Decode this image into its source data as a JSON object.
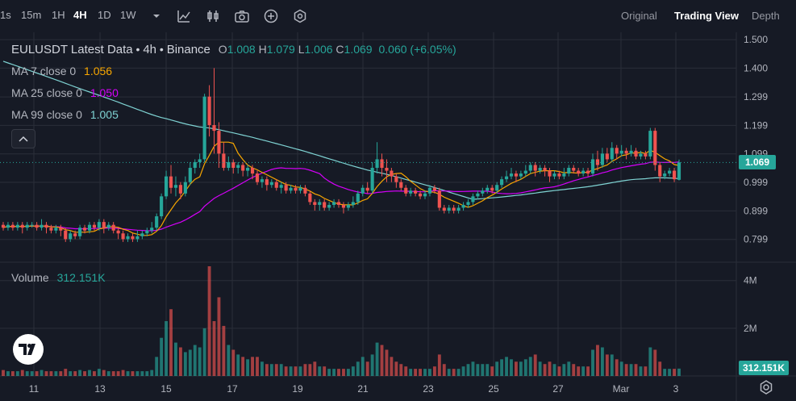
{
  "toolbar": {
    "intervals": [
      {
        "label": "1s",
        "active": false
      },
      {
        "label": "15m",
        "active": false
      },
      {
        "label": "1H",
        "active": false
      },
      {
        "label": "4H",
        "active": true
      },
      {
        "label": "1D",
        "active": false
      },
      {
        "label": "1W",
        "active": false
      }
    ],
    "icons": [
      "chevron-down-icon",
      "indicators-icon",
      "candle-style-icon",
      "camera-icon",
      "add-icon",
      "settings-hex-icon"
    ],
    "views": [
      {
        "label": "Original",
        "active": false
      },
      {
        "label": "Trading View",
        "active": true
      },
      {
        "label": "Depth",
        "active": false
      }
    ]
  },
  "legend": {
    "symbol": "EULUSDT Latest Data",
    "interval": "4h",
    "exchange": "Binance",
    "ohlc": {
      "o": "1.008",
      "h": "1.079",
      "l": "1.006",
      "c": "1.069",
      "chg": "0.060 (+6.05%)"
    },
    "ma7": {
      "label": "MA 7 close 0",
      "value": "1.056"
    },
    "ma25": {
      "label": "MA 25 close 0",
      "value": "1.050"
    },
    "ma99": {
      "label": "MA 99 close 0",
      "value": "1.005"
    },
    "volume": {
      "label": "Volume",
      "value": "312.151K"
    }
  },
  "price_tag": "1.069",
  "volume_tag": "312.151K",
  "colors": {
    "up": "#26a69a",
    "down": "#ef5350",
    "ma7": "#f7a600",
    "ma25": "#d500f9",
    "ma99": "#7fd3d3",
    "bg": "#161a25",
    "grid": "#2a2e39",
    "text": "#b2b5be"
  },
  "chart_data": {
    "type": "candlestick",
    "x_ticks": [
      "11",
      "13",
      "15",
      "17",
      "19",
      "21",
      "23",
      "25",
      "27",
      "Mar",
      "3"
    ],
    "price_axis": {
      "ticks": [
        "1.500",
        "1.400",
        "1.299",
        "1.199",
        "1.099",
        "0.999",
        "0.899",
        "0.799"
      ],
      "ylim": [
        0.75,
        1.52
      ]
    },
    "volume_axis": {
      "ticks": [
        "4M",
        "2M"
      ],
      "ylim": [
        0,
        4.6
      ]
    },
    "candles": [
      [
        0.85,
        0.84,
        0.83,
        0.86,
        0.25
      ],
      [
        0.84,
        0.85,
        0.83,
        0.86,
        0.2
      ],
      [
        0.85,
        0.84,
        0.83,
        0.86,
        0.2
      ],
      [
        0.84,
        0.85,
        0.83,
        0.86,
        0.2
      ],
      [
        0.85,
        0.84,
        0.82,
        0.86,
        0.25
      ],
      [
        0.84,
        0.85,
        0.83,
        0.86,
        0.2
      ],
      [
        0.85,
        0.85,
        0.84,
        0.86,
        0.2
      ],
      [
        0.85,
        0.84,
        0.83,
        0.86,
        0.2
      ],
      [
        0.84,
        0.85,
        0.83,
        0.87,
        0.25
      ],
      [
        0.85,
        0.84,
        0.82,
        0.86,
        0.2
      ],
      [
        0.84,
        0.83,
        0.82,
        0.85,
        0.2
      ],
      [
        0.83,
        0.84,
        0.82,
        0.85,
        0.2
      ],
      [
        0.84,
        0.83,
        0.81,
        0.85,
        0.2
      ],
      [
        0.83,
        0.8,
        0.79,
        0.84,
        0.3
      ],
      [
        0.8,
        0.82,
        0.79,
        0.83,
        0.2
      ],
      [
        0.82,
        0.81,
        0.8,
        0.83,
        0.2
      ],
      [
        0.81,
        0.84,
        0.8,
        0.85,
        0.25
      ],
      [
        0.84,
        0.83,
        0.82,
        0.85,
        0.2
      ],
      [
        0.83,
        0.85,
        0.82,
        0.86,
        0.25
      ],
      [
        0.85,
        0.84,
        0.83,
        0.86,
        0.2
      ],
      [
        0.84,
        0.86,
        0.83,
        0.87,
        0.3
      ],
      [
        0.86,
        0.84,
        0.82,
        0.87,
        0.25
      ],
      [
        0.84,
        0.85,
        0.83,
        0.86,
        0.2
      ],
      [
        0.85,
        0.83,
        0.82,
        0.86,
        0.2
      ],
      [
        0.83,
        0.82,
        0.8,
        0.84,
        0.2
      ],
      [
        0.82,
        0.8,
        0.79,
        0.83,
        0.25
      ],
      [
        0.8,
        0.81,
        0.79,
        0.82,
        0.2
      ],
      [
        0.81,
        0.8,
        0.79,
        0.82,
        0.2
      ],
      [
        0.8,
        0.81,
        0.79,
        0.83,
        0.2
      ],
      [
        0.81,
        0.82,
        0.8,
        0.83,
        0.2
      ],
      [
        0.82,
        0.83,
        0.81,
        0.84,
        0.2
      ],
      [
        0.83,
        0.84,
        0.82,
        0.86,
        0.25
      ],
      [
        0.84,
        0.88,
        0.83,
        0.89,
        0.8
      ],
      [
        0.88,
        0.95,
        0.87,
        0.96,
        1.6
      ],
      [
        0.95,
        1.02,
        0.94,
        1.04,
        2.3
      ],
      [
        1.02,
        0.98,
        0.96,
        1.06,
        2.8
      ],
      [
        0.98,
        0.99,
        0.95,
        1.02,
        1.4
      ],
      [
        0.99,
        0.96,
        0.94,
        1.0,
        1.2
      ],
      [
        0.96,
        1.0,
        0.95,
        1.02,
        1.0
      ],
      [
        1.0,
        1.05,
        0.99,
        1.07,
        1.1
      ],
      [
        1.05,
        1.07,
        1.03,
        1.08,
        1.3
      ],
      [
        1.07,
        1.08,
        1.05,
        1.1,
        1.2
      ],
      [
        1.08,
        1.3,
        1.07,
        1.31,
        2.0
      ],
      [
        1.3,
        1.2,
        1.16,
        1.34,
        4.6
      ],
      [
        1.2,
        1.18,
        1.1,
        1.4,
        2.3
      ],
      [
        1.18,
        1.1,
        1.05,
        1.21,
        3.3
      ],
      [
        1.1,
        1.05,
        1.04,
        1.14,
        2.1
      ],
      [
        1.05,
        1.07,
        1.04,
        1.09,
        1.3
      ],
      [
        1.07,
        1.05,
        1.03,
        1.08,
        1.1
      ],
      [
        1.05,
        1.06,
        1.03,
        1.07,
        0.9
      ],
      [
        1.06,
        1.04,
        1.02,
        1.07,
        0.8
      ],
      [
        1.04,
        1.05,
        1.02,
        1.06,
        0.7
      ],
      [
        1.05,
        1.03,
        1.01,
        1.06,
        0.8
      ],
      [
        1.03,
        1.0,
        0.99,
        1.04,
        0.8
      ],
      [
        1.0,
        1.01,
        0.98,
        1.02,
        0.6
      ],
      [
        1.01,
        0.99,
        0.97,
        1.02,
        0.5
      ],
      [
        0.99,
        1.0,
        0.98,
        1.01,
        0.5
      ],
      [
        1.0,
        0.98,
        0.97,
        1.01,
        0.5
      ],
      [
        0.98,
        0.99,
        0.96,
        1.0,
        0.5
      ],
      [
        0.99,
        0.97,
        0.96,
        1.0,
        0.4
      ],
      [
        0.97,
        0.98,
        0.96,
        0.99,
        0.4
      ],
      [
        0.98,
        0.97,
        0.96,
        0.99,
        0.4
      ],
      [
        0.97,
        0.98,
        0.96,
        0.99,
        0.4
      ],
      [
        0.98,
        0.96,
        0.95,
        0.99,
        0.5
      ],
      [
        0.96,
        0.93,
        0.92,
        0.97,
        0.5
      ],
      [
        0.93,
        0.92,
        0.9,
        0.94,
        0.6
      ],
      [
        0.92,
        0.93,
        0.9,
        0.94,
        0.4
      ],
      [
        0.93,
        0.91,
        0.9,
        0.94,
        0.4
      ],
      [
        0.91,
        0.92,
        0.9,
        0.93,
        0.3
      ],
      [
        0.92,
        0.93,
        0.91,
        0.94,
        0.3
      ],
      [
        0.93,
        0.92,
        0.91,
        0.94,
        0.3
      ],
      [
        0.92,
        0.91,
        0.89,
        0.93,
        0.3
      ],
      [
        0.91,
        0.92,
        0.9,
        0.93,
        0.3
      ],
      [
        0.92,
        0.93,
        0.91,
        0.95,
        0.4
      ],
      [
        0.93,
        0.96,
        0.92,
        0.97,
        0.6
      ],
      [
        0.96,
        0.98,
        0.95,
        0.99,
        0.8
      ],
      [
        0.98,
        0.97,
        0.96,
        1.0,
        0.6
      ],
      [
        0.97,
        1.05,
        0.96,
        1.07,
        0.9
      ],
      [
        1.05,
        1.08,
        1.03,
        1.14,
        1.4
      ],
      [
        1.08,
        1.05,
        1.02,
        1.1,
        1.3
      ],
      [
        1.05,
        1.04,
        1.0,
        1.08,
        1.1
      ],
      [
        1.04,
        1.02,
        1.0,
        1.05,
        0.8
      ],
      [
        1.02,
        1.0,
        0.98,
        1.03,
        0.6
      ],
      [
        1.0,
        0.98,
        0.97,
        1.01,
        0.5
      ],
      [
        0.98,
        0.96,
        0.95,
        0.99,
        0.4
      ],
      [
        0.96,
        0.97,
        0.95,
        0.98,
        0.3
      ],
      [
        0.97,
        0.96,
        0.95,
        0.98,
        0.3
      ],
      [
        0.96,
        0.95,
        0.94,
        0.97,
        0.3
      ],
      [
        0.95,
        0.96,
        0.94,
        0.97,
        0.3
      ],
      [
        0.96,
        0.98,
        0.95,
        0.99,
        0.3
      ],
      [
        0.98,
        0.97,
        0.96,
        0.99,
        0.4
      ],
      [
        0.97,
        0.91,
        0.9,
        0.98,
        0.9
      ],
      [
        0.91,
        0.9,
        0.89,
        0.92,
        0.5
      ],
      [
        0.9,
        0.91,
        0.89,
        0.92,
        0.3
      ],
      [
        0.91,
        0.9,
        0.89,
        0.92,
        0.3
      ],
      [
        0.9,
        0.91,
        0.89,
        0.92,
        0.3
      ],
      [
        0.91,
        0.92,
        0.9,
        0.93,
        0.4
      ],
      [
        0.92,
        0.93,
        0.91,
        0.94,
        0.5
      ],
      [
        0.93,
        0.95,
        0.92,
        0.96,
        0.6
      ],
      [
        0.95,
        0.96,
        0.94,
        0.97,
        0.5
      ],
      [
        0.96,
        0.97,
        0.95,
        0.98,
        0.5
      ],
      [
        0.97,
        0.98,
        0.96,
        0.99,
        0.5
      ],
      [
        0.98,
        0.97,
        0.96,
        0.99,
        0.4
      ],
      [
        0.97,
        0.99,
        0.96,
        1.0,
        0.6
      ],
      [
        0.99,
        1.01,
        0.98,
        1.02,
        0.7
      ],
      [
        1.01,
        1.02,
        1.0,
        1.04,
        0.8
      ],
      [
        1.02,
        1.03,
        1.01,
        1.05,
        0.7
      ],
      [
        1.03,
        1.02,
        1.0,
        1.04,
        0.6
      ],
      [
        1.02,
        1.03,
        1.01,
        1.04,
        0.6
      ],
      [
        1.03,
        1.04,
        1.02,
        1.06,
        0.7
      ],
      [
        1.04,
        1.06,
        1.03,
        1.07,
        0.8
      ],
      [
        1.06,
        1.04,
        1.02,
        1.07,
        0.9
      ],
      [
        1.04,
        1.05,
        1.03,
        1.06,
        0.6
      ],
      [
        1.05,
        1.04,
        1.02,
        1.06,
        0.5
      ],
      [
        1.04,
        1.02,
        1.0,
        1.05,
        0.6
      ],
      [
        1.02,
        1.03,
        1.01,
        1.04,
        0.5
      ],
      [
        1.03,
        1.02,
        1.01,
        1.04,
        0.4
      ],
      [
        1.02,
        1.03,
        1.01,
        1.05,
        0.5
      ],
      [
        1.03,
        1.05,
        1.02,
        1.06,
        0.6
      ],
      [
        1.05,
        1.04,
        1.03,
        1.06,
        0.5
      ],
      [
        1.04,
        1.03,
        1.02,
        1.05,
        0.4
      ],
      [
        1.03,
        1.04,
        1.02,
        1.05,
        0.4
      ],
      [
        1.04,
        1.03,
        1.02,
        1.05,
        0.4
      ],
      [
        1.03,
        1.08,
        1.02,
        1.1,
        1.1
      ],
      [
        1.08,
        1.06,
        1.04,
        1.11,
        1.3
      ],
      [
        1.06,
        1.1,
        1.05,
        1.12,
        1.2
      ],
      [
        1.1,
        1.08,
        1.07,
        1.12,
        0.9
      ],
      [
        1.08,
        1.12,
        1.07,
        1.14,
        0.9
      ],
      [
        1.12,
        1.1,
        1.08,
        1.13,
        0.7
      ],
      [
        1.1,
        1.11,
        1.09,
        1.13,
        0.6
      ],
      [
        1.11,
        1.1,
        1.08,
        1.12,
        0.5
      ],
      [
        1.1,
        1.11,
        1.09,
        1.13,
        0.5
      ],
      [
        1.11,
        1.09,
        1.08,
        1.12,
        0.5
      ],
      [
        1.09,
        1.1,
        1.08,
        1.11,
        0.4
      ],
      [
        1.1,
        1.09,
        1.08,
        1.11,
        0.4
      ],
      [
        1.09,
        1.18,
        1.08,
        1.19,
        1.2
      ],
      [
        1.18,
        1.06,
        1.04,
        1.19,
        1.1
      ],
      [
        1.06,
        1.02,
        1.0,
        1.07,
        0.6
      ],
      [
        1.02,
        1.03,
        1.01,
        1.04,
        0.3
      ],
      [
        1.03,
        1.04,
        1.02,
        1.05,
        0.3
      ],
      [
        1.04,
        1.01,
        1.0,
        1.05,
        0.3
      ],
      [
        1.008,
        1.069,
        1.006,
        1.079,
        0.31
      ]
    ]
  }
}
